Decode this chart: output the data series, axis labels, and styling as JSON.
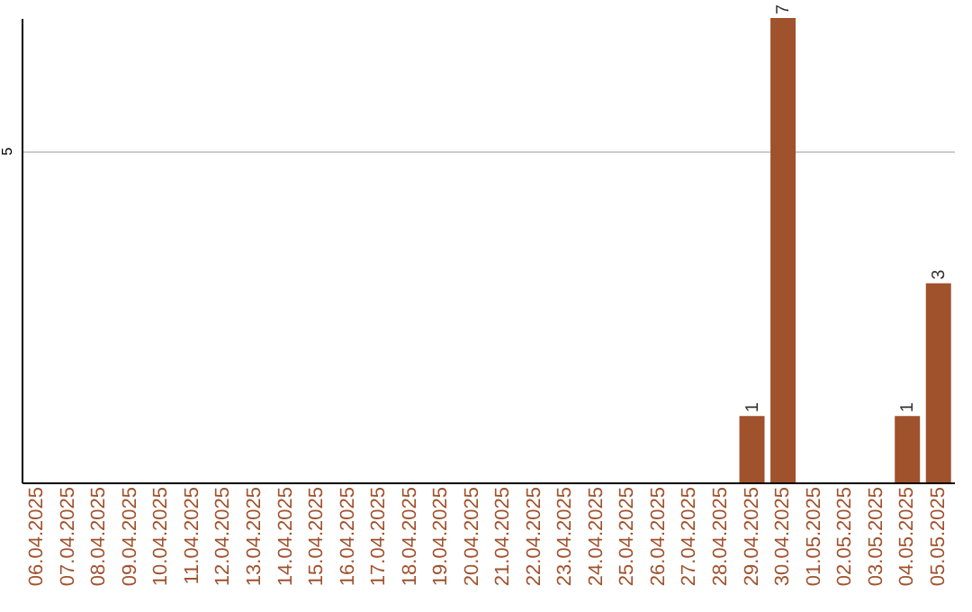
{
  "chart_data": {
    "type": "bar",
    "categories": [
      "06.04.2025",
      "07.04.2025",
      "08.04.2025",
      "09.04.2025",
      "10.04.2025",
      "11.04.2025",
      "12.04.2025",
      "13.04.2025",
      "14.04.2025",
      "15.04.2025",
      "16.04.2025",
      "17.04.2025",
      "18.04.2025",
      "19.04.2025",
      "20.04.2025",
      "21.04.2025",
      "22.04.2025",
      "23.04.2025",
      "24.04.2025",
      "25.04.2025",
      "26.04.2025",
      "27.04.2025",
      "28.04.2025",
      "29.04.2025",
      "30.04.2025",
      "01.05.2025",
      "02.05.2025",
      "03.05.2025",
      "04.05.2025",
      "05.05.2025"
    ],
    "values": [
      null,
      null,
      null,
      null,
      null,
      null,
      null,
      null,
      null,
      null,
      null,
      null,
      null,
      null,
      null,
      null,
      null,
      null,
      null,
      null,
      null,
      null,
      null,
      1,
      7,
      null,
      null,
      null,
      1,
      3
    ],
    "data_labels": true,
    "color": "#a0522d",
    "ylim": [
      0,
      7
    ],
    "yticks": [
      {
        "value": 0,
        "label": null
      },
      5
    ],
    "grid": "y"
  }
}
